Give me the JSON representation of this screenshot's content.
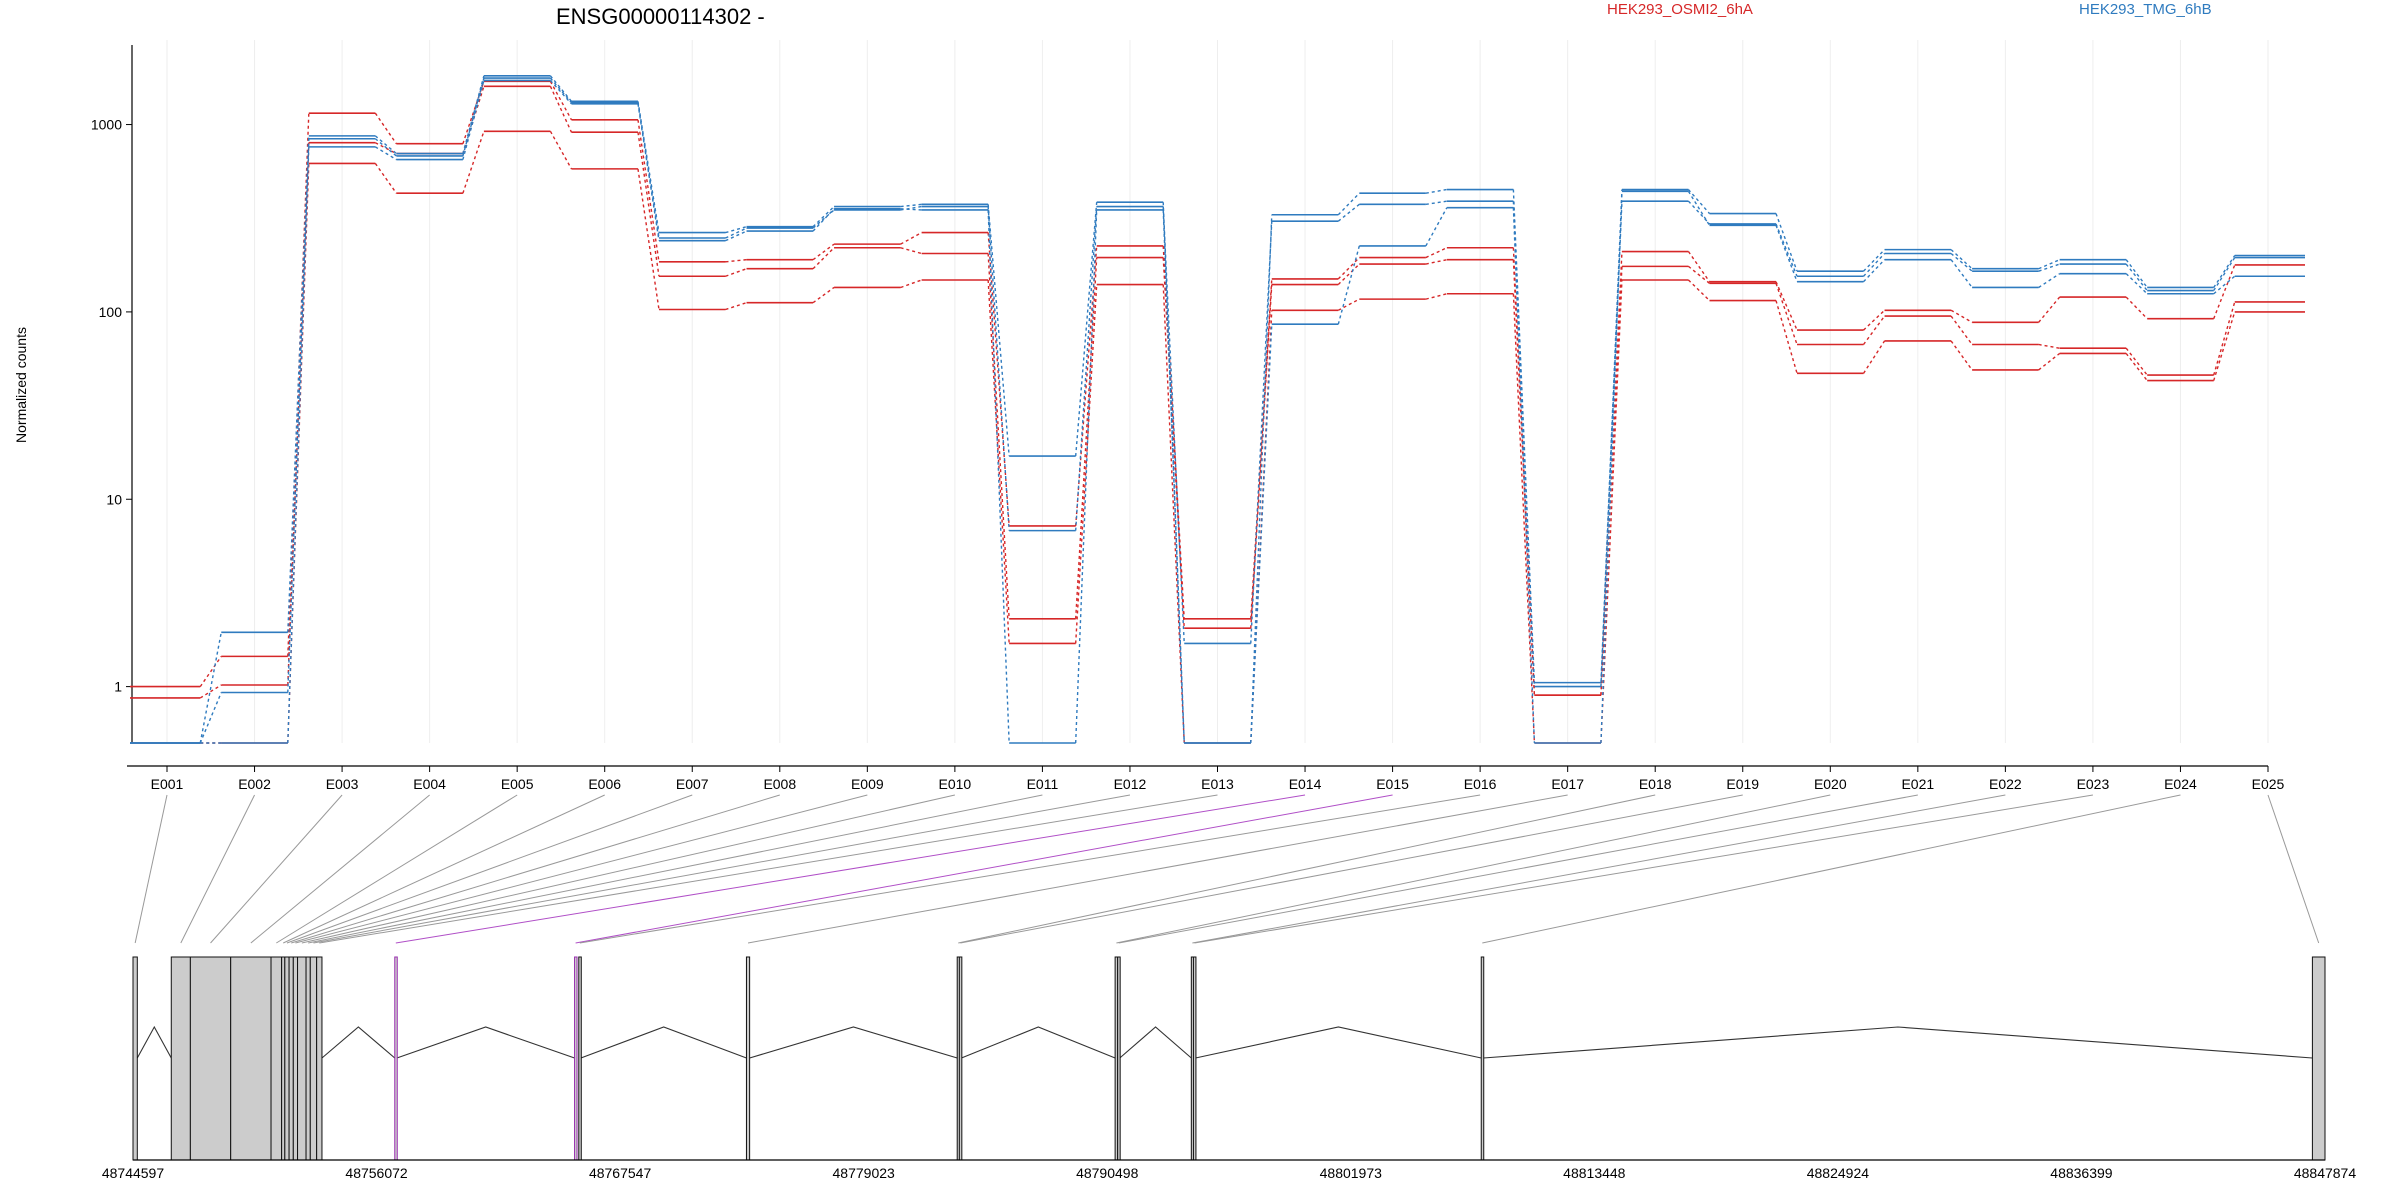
{
  "chart_data": {
    "type": "line",
    "title": "ENSG00000114302 -",
    "ylabel": "Normalized counts",
    "yscale": "log",
    "ylim": [
      0.5,
      2500
    ],
    "yticks": [
      1,
      10,
      100,
      1000
    ],
    "ytick_labels": [
      "1",
      "10",
      "100",
      "1000"
    ],
    "grid": "vertical",
    "legend": [
      {
        "name": "HEK293_OSMI2_6hA",
        "color": "#d62728"
      },
      {
        "name": "HEK293_TMG_6hB",
        "color": "#2f7bbf"
      }
    ],
    "categories": [
      "E001",
      "E002",
      "E003",
      "E004",
      "E005",
      "E006",
      "E007",
      "E008",
      "E009",
      "E010",
      "E011",
      "E012",
      "E013",
      "E014",
      "E015",
      "E016",
      "E017",
      "E018",
      "E019",
      "E020",
      "E021",
      "E022",
      "E023",
      "E024",
      "E025"
    ],
    "series": [
      {
        "group": "HEK293_OSMI2_6hA",
        "color": "#d62728",
        "values": [
          1.0,
          1.45,
          1150,
          790,
          1700,
          1060,
          185,
          190,
          230,
          265,
          7.2,
          225,
          2.3,
          150,
          195,
          220,
          0.9,
          210,
          145,
          80,
          102,
          88,
          120,
          92,
          178
        ]
      },
      {
        "group": "HEK293_OSMI2_6hA",
        "color": "#d62728",
        "values": [
          0.87,
          1.02,
          800,
          700,
          1600,
          910,
          155,
          170,
          220,
          205,
          2.3,
          195,
          2.05,
          140,
          180,
          190,
          0.9,
          175,
          142,
          67,
          95,
          67,
          64,
          46,
          113
        ]
      },
      {
        "group": "HEK293_OSMI2_6hA",
        "color": "#d62728",
        "values": [
          0.5,
          0.5,
          620,
          430,
          920,
          580,
          103,
          112,
          135,
          148,
          1.7,
          140,
          0.5,
          102,
          117,
          125,
          0.5,
          148,
          115,
          47,
          70,
          49,
          60,
          43,
          100
        ]
      },
      {
        "group": "HEK293_TMG_6hB",
        "color": "#2f7bbf",
        "values": [
          0.5,
          1.95,
          870,
          700,
          1820,
          1330,
          265,
          285,
          365,
          375,
          17,
          385,
          0.5,
          330,
          430,
          450,
          1.05,
          450,
          335,
          165,
          215,
          170,
          190,
          135,
          200
        ]
      },
      {
        "group": "HEK293_TMG_6hB",
        "color": "#2f7bbf",
        "values": [
          0.5,
          0.93,
          840,
          680,
          1770,
          1310,
          248,
          280,
          350,
          365,
          6.8,
          365,
          1.7,
          305,
          375,
          390,
          1.0,
          390,
          295,
          155,
          205,
          165,
          180,
          130,
          195
        ]
      },
      {
        "group": "HEK293_TMG_6hB",
        "color": "#2f7bbf",
        "values": [
          0.5,
          0.5,
          760,
          650,
          1720,
          1290,
          240,
          270,
          355,
          350,
          0.5,
          350,
          0.5,
          86,
          225,
          360,
          0.5,
          440,
          290,
          145,
          190,
          135,
          160,
          125,
          155
        ]
      }
    ],
    "gene_model": {
      "coordinate_ticks": [
        "48744597",
        "48756072",
        "48767547",
        "48779023",
        "48790498",
        "48801973",
        "48813448",
        "48824924",
        "48836399",
        "48847874"
      ],
      "xlim": [
        48744597,
        48847874
      ],
      "exons": [
        {
          "id": "E001",
          "start": 48744597,
          "end": 48744800
        },
        {
          "id": "E002",
          "start": 48746400,
          "end": 48747300
        },
        {
          "id": "E003",
          "start": 48747300,
          "end": 48749200
        },
        {
          "id": "E004",
          "start": 48749200,
          "end": 48751100
        },
        {
          "id": "E005",
          "start": 48751100,
          "end": 48751600
        },
        {
          "id": "E006",
          "start": 48751600,
          "end": 48751750
        },
        {
          "id": "E007",
          "start": 48751750,
          "end": 48751950
        },
        {
          "id": "E008",
          "start": 48751950,
          "end": 48752150
        },
        {
          "id": "E009",
          "start": 48752150,
          "end": 48752350
        },
        {
          "id": "E010",
          "start": 48752350,
          "end": 48752750
        },
        {
          "id": "E011",
          "start": 48752750,
          "end": 48752950
        },
        {
          "id": "E012",
          "start": 48752950,
          "end": 48753250
        },
        {
          "id": "E013",
          "start": 48753250,
          "end": 48753500
        },
        {
          "id": "E014",
          "start": 48756930,
          "end": 48757030
        },
        {
          "id": "E015",
          "start": 48765400,
          "end": 48765500
        },
        {
          "id": "E016",
          "start": 48765600,
          "end": 48765700
        },
        {
          "id": "E017",
          "start": 48773500,
          "end": 48773650
        },
        {
          "id": "E018",
          "start": 48783430,
          "end": 48783530
        },
        {
          "id": "E019",
          "start": 48783530,
          "end": 48783630
        },
        {
          "id": "E020",
          "start": 48790870,
          "end": 48790990
        },
        {
          "id": "E021",
          "start": 48790990,
          "end": 48791090
        },
        {
          "id": "E022",
          "start": 48794460,
          "end": 48794560
        },
        {
          "id": "E023",
          "start": 48794560,
          "end": 48794660
        },
        {
          "id": "E024",
          "start": 48808120,
          "end": 48808220
        },
        {
          "id": "E025",
          "start": 48847280,
          "end": 48847874
        }
      ],
      "highlighted_exons": [
        "E014",
        "E015"
      ]
    }
  }
}
